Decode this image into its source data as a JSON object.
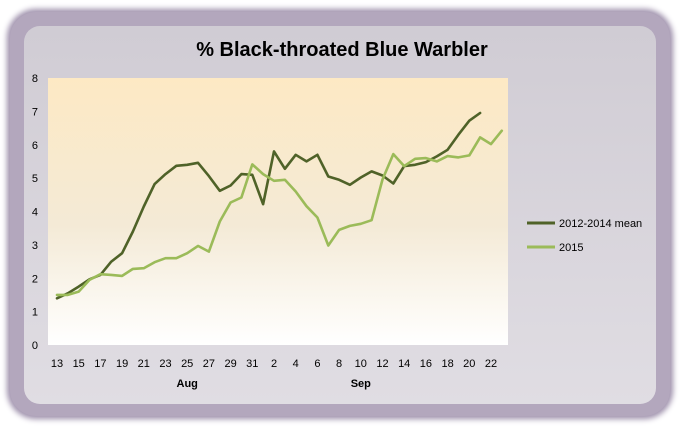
{
  "chart_data": {
    "type": "line",
    "title": "% Black-throated Blue Warbler",
    "xlabel": "",
    "ylabel": "",
    "ylim": [
      0,
      8
    ],
    "yticks": [
      0,
      1,
      2,
      3,
      4,
      5,
      6,
      7,
      8
    ],
    "grid": false,
    "legend_position": "right",
    "x_tick_labels": [
      "13",
      "15",
      "17",
      "19",
      "21",
      "23",
      "25",
      "27",
      "29",
      "31",
      "2",
      "4",
      "6",
      "8",
      "10",
      "12",
      "14",
      "16",
      "18",
      "20",
      "22"
    ],
    "month_labels": [
      {
        "label": "Aug",
        "at_tick": "25"
      },
      {
        "label": "Sep",
        "at_tick": "10"
      }
    ],
    "x": [
      "Aug 13",
      "Aug 14",
      "Aug 15",
      "Aug 16",
      "Aug 17",
      "Aug 18",
      "Aug 19",
      "Aug 20",
      "Aug 21",
      "Aug 22",
      "Aug 23",
      "Aug 24",
      "Aug 25",
      "Aug 26",
      "Aug 27",
      "Aug 28",
      "Aug 29",
      "Aug 30",
      "Aug 31",
      "Sep 1",
      "Sep 2",
      "Sep 3",
      "Sep 4",
      "Sep 5",
      "Sep 6",
      "Sep 7",
      "Sep 8",
      "Sep 9",
      "Sep 10",
      "Sep 11",
      "Sep 12",
      "Sep 13",
      "Sep 14",
      "Sep 15",
      "Sep 16",
      "Sep 17",
      "Sep 18",
      "Sep 19",
      "Sep 20",
      "Sep 21",
      "Sep 22",
      "Sep 23"
    ],
    "series": [
      {
        "name": "2012-2014 mean",
        "color": "#4f6228",
        "values": [
          1.4,
          1.55,
          1.75,
          1.97,
          2.1,
          2.5,
          2.75,
          3.4,
          4.15,
          4.82,
          5.12,
          5.37,
          5.4,
          5.46,
          5.06,
          4.62,
          4.78,
          5.12,
          5.1,
          4.22,
          5.8,
          5.28,
          5.7,
          5.5,
          5.7,
          5.05,
          4.95,
          4.8,
          5.02,
          5.2,
          5.08,
          4.84,
          5.36,
          5.4,
          5.48,
          5.65,
          5.85,
          6.3,
          6.72,
          6.95,
          null,
          null
        ]
      },
      {
        "name": "2015",
        "color": "#9bbb59",
        "values": [
          1.5,
          1.5,
          1.6,
          1.95,
          2.12,
          2.1,
          2.07,
          2.28,
          2.3,
          2.48,
          2.6,
          2.6,
          2.75,
          2.97,
          2.8,
          3.7,
          4.27,
          4.42,
          5.41,
          5.12,
          4.92,
          4.95,
          4.6,
          4.16,
          3.82,
          2.98,
          3.45,
          3.57,
          3.63,
          3.74,
          4.96,
          5.72,
          5.36,
          5.58,
          5.6,
          5.5,
          5.66,
          5.62,
          5.68,
          6.22,
          6.02,
          6.42
        ]
      }
    ]
  }
}
